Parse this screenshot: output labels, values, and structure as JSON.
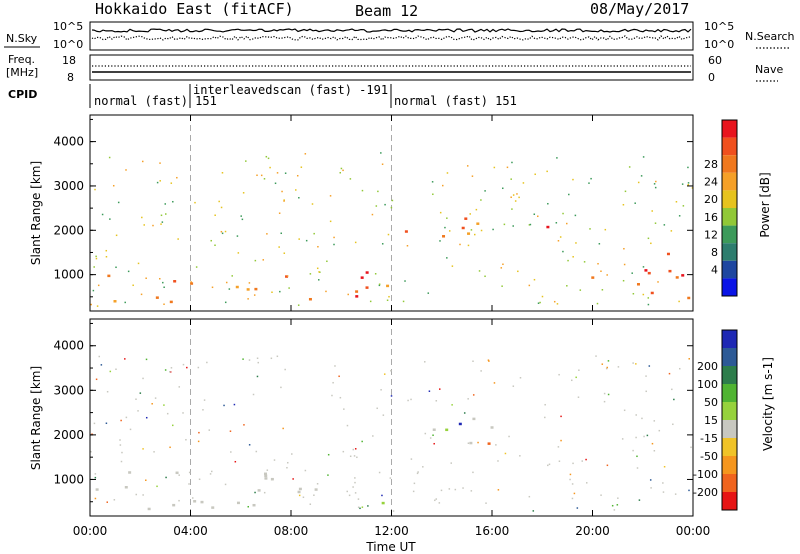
{
  "header": {
    "station": "Hokkaido East (fitACF)",
    "beam": "Beam 12",
    "date": "08/May/2017"
  },
  "top_panels": {
    "nsky_label": "N.Sky",
    "nsearch_label": "N.Search",
    "noise_ticks": [
      "10^5",
      "10^0"
    ],
    "freq_label_1": "Freq.",
    "freq_label_2": "[MHz]",
    "freq_ticks": [
      "18",
      "8"
    ],
    "nave_label": "Nave",
    "nave_ticks": [
      "60",
      "0"
    ],
    "cpid_label": "CPID",
    "cpid_segments": [
      {
        "text": "normal (fast) 151",
        "start_h": 0,
        "end_h": 4
      },
      {
        "text": "interleavedscan (fast) -191",
        "start_h": 4,
        "end_h": 12
      },
      {
        "text": "normal (fast) 151",
        "start_h": 12,
        "end_h": 24
      }
    ]
  },
  "panels": {
    "power": {
      "ylabel": "Slant Range [km]",
      "colorbar_label": "Power [dB]",
      "colorbar_ticks": [
        "28",
        "24",
        "20",
        "16",
        "12",
        "8",
        "4"
      ],
      "colors": [
        "#e8141e",
        "#f0501e",
        "#f0781e",
        "#f5a028",
        "#e6c31e",
        "#91c837",
        "#3c9a5a",
        "#2d7d6e",
        "#1e46a0",
        "#0a14e6"
      ]
    },
    "velocity": {
      "ylabel": "Slant Range [km]",
      "colorbar_label": "Velocity [m s-1]",
      "colorbar_ticks": [
        "200",
        "100",
        "50",
        "15",
        "-15",
        "-50",
        "-100",
        "-200"
      ],
      "colors": [
        "#1e28b4",
        "#2d5a96",
        "#2d7d4b",
        "#50b432",
        "#96d23c",
        "#c8c8c0",
        "#f0c328",
        "#f5961e",
        "#f0641e",
        "#e61414"
      ]
    }
  },
  "chart_data": {
    "type": "heatmap",
    "x_axis": {
      "label": "Time UT",
      "tick_labels": [
        "00:00",
        "04:00",
        "08:00",
        "12:00",
        "16:00",
        "20:00",
        "00:00"
      ],
      "range_hours": [
        0,
        24
      ]
    },
    "y_axis": {
      "label": "Slant Range [km]",
      "tick_labels": [
        "1000",
        "2000",
        "3000",
        "4000"
      ],
      "ylim": [
        180,
        4600
      ]
    },
    "time_markers_hours": [
      4,
      12
    ],
    "power_regions": [
      {
        "t0": 0.0,
        "t1": 4.0,
        "r0": 250,
        "r1": 1100,
        "level": "20-28"
      },
      {
        "t0": 4.0,
        "t1": 12.0,
        "r0": 400,
        "r1": 1200,
        "level": "12-28"
      },
      {
        "t0": 12.5,
        "t1": 18.5,
        "r0": 1800,
        "r1": 2500,
        "level": "20-28"
      },
      {
        "t0": 19.0,
        "t1": 24.0,
        "r0": 250,
        "r1": 1500,
        "level": "16-28"
      }
    ],
    "velocity_regions": [
      {
        "t0": 0.0,
        "t1": 12.0,
        "r0": 300,
        "r1": 1300,
        "level": "-15 to 15"
      },
      {
        "t0": 12.5,
        "t1": 18.5,
        "r0": 1800,
        "r1": 2500,
        "level": "-15 to 15"
      }
    ]
  }
}
